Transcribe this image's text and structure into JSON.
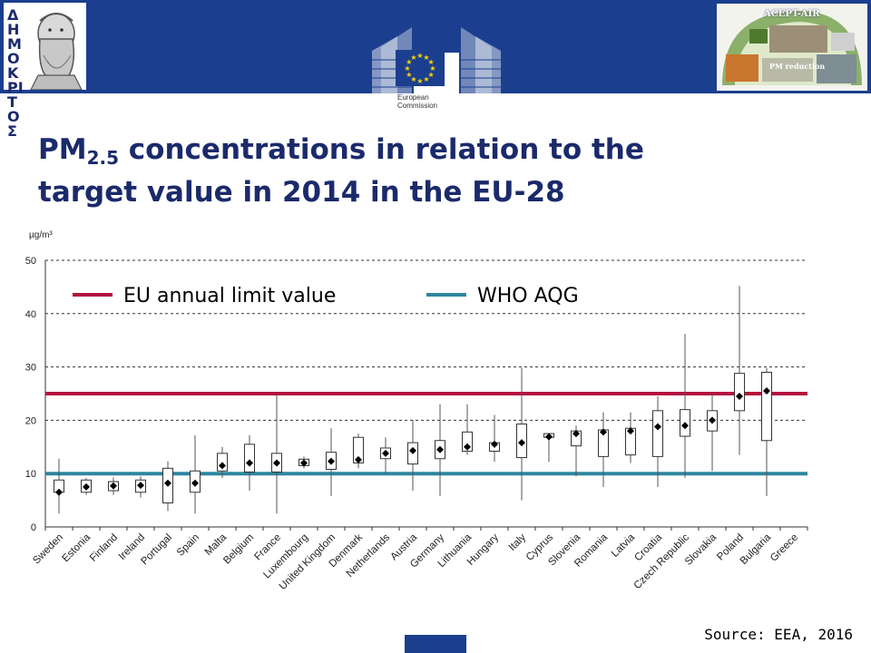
{
  "header": {
    "left_logo_text": "ΔΗΜΟΚΡΙΤΟΣ",
    "right_logo_title": "ACEPT-AIR",
    "right_logo_caption": "PM reduction",
    "ec_logo_text": "European\nCommission",
    "brand_color": "#1b3f8e"
  },
  "title": {
    "prefix": "PM",
    "sub": "2.5",
    "line1_rest": " concentrations in relation to the",
    "line2": "target value in 2014 in the EU-28"
  },
  "source": "Source: EEA, 2016",
  "chart_data": {
    "type": "box",
    "unit_label": "µg/m³",
    "ylim": [
      0,
      50
    ],
    "yticks": [
      0,
      10,
      20,
      30,
      40,
      50
    ],
    "grid": "dashed horizontal",
    "legend_position": "top-left",
    "reference_lines": [
      {
        "name": "EU annual limit value",
        "value": 25,
        "color": "#b5123e"
      },
      {
        "name": "WHO AQG",
        "value": 10,
        "color": "#2e86a0"
      }
    ],
    "categories": [
      "Sweden",
      "Estonia",
      "Finland",
      "Ireland",
      "Portugal",
      "Spain",
      "Malta",
      "Belgium",
      "France",
      "Luxembourg",
      "United Kingdom",
      "Denmark",
      "Netherlands",
      "Austria",
      "Germany",
      "Lithuania",
      "Hungary",
      "Italy",
      "Cyprus",
      "Slovenia",
      "Romania",
      "Latvia",
      "Croatia",
      "Czech Republic",
      "Slovakia",
      "Poland",
      "Bulgaria",
      "Greece"
    ],
    "series": [
      {
        "country": "Sweden",
        "min": 2.5,
        "q1": 6.5,
        "median": 6.5,
        "q3": 8.8,
        "max": 12.8
      },
      {
        "country": "Estonia",
        "min": 6,
        "q1": 6.5,
        "median": 7.5,
        "q3": 8.8,
        "max": 9.2
      },
      {
        "country": "Finland",
        "min": 6,
        "q1": 6.8,
        "median": 7.7,
        "q3": 8.5,
        "max": 9.3
      },
      {
        "country": "Ireland",
        "min": 5.5,
        "q1": 6.5,
        "median": 7.8,
        "q3": 8.8,
        "max": 9.5
      },
      {
        "country": "Portugal",
        "min": 3,
        "q1": 4.5,
        "median": 8.2,
        "q3": 11,
        "max": 12.3
      },
      {
        "country": "Spain",
        "min": 2.5,
        "q1": 6.5,
        "median": 8.2,
        "q3": 10.5,
        "max": 17.2
      },
      {
        "country": "Malta",
        "min": 9.2,
        "q1": 10.5,
        "median": 11.5,
        "q3": 13.8,
        "max": 15
      },
      {
        "country": "Belgium",
        "min": 6.8,
        "q1": 10.3,
        "median": 12,
        "q3": 15.5,
        "max": 17.2
      },
      {
        "country": "France",
        "min": 2.5,
        "q1": 10.3,
        "median": 12,
        "q3": 13.8,
        "max": 24.8
      },
      {
        "country": "Luxembourg",
        "min": 11,
        "q1": 11.5,
        "median": 12,
        "q3": 12.7,
        "max": 13.2
      },
      {
        "country": "United Kingdom",
        "min": 5.8,
        "q1": 10.8,
        "median": 12.3,
        "q3": 14,
        "max": 18.5
      },
      {
        "country": "Denmark",
        "min": 11,
        "q1": 12,
        "median": 12.6,
        "q3": 16.8,
        "max": 17.5
      },
      {
        "country": "Netherlands",
        "min": 10,
        "q1": 12.8,
        "median": 13.8,
        "q3": 14.8,
        "max": 16.8
      },
      {
        "country": "Austria",
        "min": 6.8,
        "q1": 11.8,
        "median": 14.3,
        "q3": 15.8,
        "max": 20
      },
      {
        "country": "Germany",
        "min": 5.8,
        "q1": 12.8,
        "median": 14.5,
        "q3": 16.2,
        "max": 23
      },
      {
        "country": "Lithuania",
        "min": 13.5,
        "q1": 14.2,
        "median": 15,
        "q3": 17.8,
        "max": 23
      },
      {
        "country": "Hungary",
        "min": 12.2,
        "q1": 14.2,
        "median": 15.5,
        "q3": 15.8,
        "max": 21
      },
      {
        "country": "Italy",
        "min": 5,
        "q1": 13,
        "median": 15.8,
        "q3": 19.3,
        "max": 29.8
      },
      {
        "country": "Cyprus",
        "min": 12.2,
        "q1": 16.8,
        "median": 16.9,
        "q3": 17.5,
        "max": 17.5
      },
      {
        "country": "Slovenia",
        "min": 9.5,
        "q1": 15.2,
        "median": 17.5,
        "q3": 18,
        "max": 19
      },
      {
        "country": "Romania",
        "min": 7.5,
        "q1": 13.2,
        "median": 17.8,
        "q3": 18.2,
        "max": 21.5
      },
      {
        "country": "Latvia",
        "min": 12,
        "q1": 13.5,
        "median": 18,
        "q3": 18.5,
        "max": 21.5
      },
      {
        "country": "Croatia",
        "min": 7.5,
        "q1": 13.2,
        "median": 18.8,
        "q3": 21.8,
        "max": 24.5
      },
      {
        "country": "Czech Republic",
        "min": 9.2,
        "q1": 17,
        "median": 19,
        "q3": 22,
        "max": 36.2
      },
      {
        "country": "Slovakia",
        "min": 10.5,
        "q1": 18,
        "median": 20,
        "q3": 21.8,
        "max": 25
      },
      {
        "country": "Poland",
        "min": 13.5,
        "q1": 21.8,
        "median": 24.5,
        "q3": 28.8,
        "max": 45.2
      },
      {
        "country": "Bulgaria",
        "min": 5.8,
        "q1": 16.2,
        "median": 25.5,
        "q3": 29,
        "max": 29.8
      },
      {
        "country": "Greece",
        "min": null,
        "q1": null,
        "median": null,
        "q3": null,
        "max": null
      }
    ]
  }
}
